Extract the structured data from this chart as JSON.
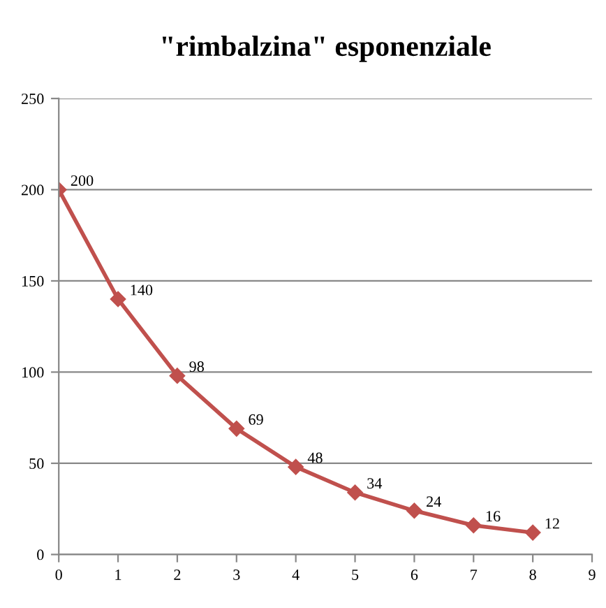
{
  "chart_data": {
    "type": "line",
    "title": "\"rimbalzina\" esponenziale",
    "x": [
      0,
      1,
      2,
      3,
      4,
      5,
      6,
      7,
      8
    ],
    "series": [
      {
        "color": "#c0504d",
        "values": [
          200,
          140,
          98,
          69,
          48,
          34,
          24,
          16,
          12
        ]
      }
    ],
    "xlim": [
      0,
      9
    ],
    "xticks": [
      0,
      1,
      2,
      3,
      4,
      5,
      6,
      7,
      8,
      9
    ],
    "ylim": [
      0,
      250
    ],
    "yticks": [
      0,
      50,
      100,
      150,
      200,
      250
    ],
    "grid": "y",
    "marker": "diamond",
    "line_style": "solid",
    "data_labels": true
  }
}
